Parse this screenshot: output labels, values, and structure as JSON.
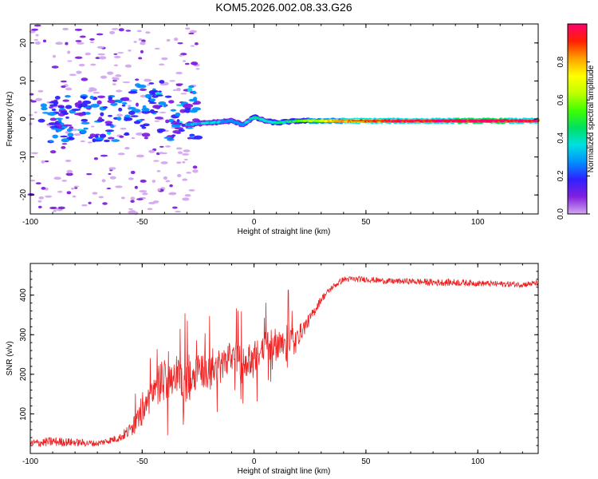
{
  "title": "KOM5.2026.002.08.33.G26",
  "chart_data": [
    {
      "type": "heatmap",
      "title": "KOM5.2026.002.08.33.G26",
      "xlabel": "Height of straight line (km)",
      "ylabel": "Frequency (Hz)",
      "xlim": [
        -100,
        127
      ],
      "ylim": [
        -25,
        25
      ],
      "xticks": [
        "-100",
        "-50",
        "0",
        "50",
        "100"
      ],
      "yticks": [
        "-20",
        "-10",
        "0",
        "10",
        "20"
      ],
      "colorbar": {
        "label": "Normalized spectral amplitude",
        "range": [
          0,
          1
        ],
        "ticks": [
          "0.0",
          "0.2",
          "0.4",
          "0.6",
          "0.8"
        ],
        "colormap": [
          "#d4a8f0",
          "#8020e0",
          "#3020ff",
          "#0090ff",
          "#00e0e0",
          "#00e060",
          "#40ff00",
          "#c0ff00",
          "#ffff00",
          "#ffa000",
          "#ff2000",
          "#ff0070"
        ]
      },
      "dominant_frequency_track": {
        "description_points_x": [
          -30,
          -20,
          -10,
          -5,
          0,
          5,
          10,
          20,
          40,
          60,
          80,
          100,
          127
        ],
        "frequency_hz": [
          -1.5,
          -1.0,
          -0.5,
          -1.5,
          0.5,
          -0.5,
          -1.0,
          -0.5,
          -0.5,
          -0.5,
          -0.5,
          -0.5,
          -0.5
        ],
        "amplitude": [
          0.3,
          0.35,
          0.3,
          0.3,
          0.4,
          0.35,
          0.4,
          0.5,
          0.75,
          0.85,
          0.9,
          0.95,
          0.9
        ]
      }
    },
    {
      "type": "line",
      "xlabel": "Height of straight line (km)",
      "ylabel": "SNR (v/v)",
      "xlim": [
        -100,
        127
      ],
      "ylim": [
        0,
        480
      ],
      "xticks": [
        "-100",
        "-50",
        "0",
        "50",
        "100"
      ],
      "yticks": [
        "100",
        "200",
        "300",
        "400"
      ],
      "series": [
        {
          "name": "SNR",
          "color": "#ee2222",
          "x": [
            -100,
            -90,
            -80,
            -70,
            -60,
            -55,
            -50,
            -45,
            -40,
            -35,
            -30,
            -25,
            -20,
            -15,
            -10,
            -5,
            0,
            5,
            10,
            15,
            20,
            25,
            30,
            35,
            40,
            50,
            60,
            70,
            80,
            90,
            100,
            110,
            120,
            127
          ],
          "y": [
            25,
            30,
            28,
            25,
            40,
            60,
            100,
            160,
            190,
            200,
            170,
            220,
            200,
            230,
            250,
            230,
            240,
            270,
            280,
            290,
            300,
            340,
            390,
            420,
            440,
            440,
            435,
            435,
            432,
            432,
            430,
            428,
            427,
            430
          ],
          "noise_amplitude": [
            20,
            25,
            20,
            15,
            20,
            40,
            60,
            90,
            110,
            110,
            100,
            90,
            90,
            90,
            80,
            80,
            80,
            80,
            80,
            70,
            50,
            30,
            20,
            15,
            15,
            15,
            15,
            15,
            18,
            18,
            15,
            15,
            15,
            15
          ]
        }
      ]
    }
  ]
}
